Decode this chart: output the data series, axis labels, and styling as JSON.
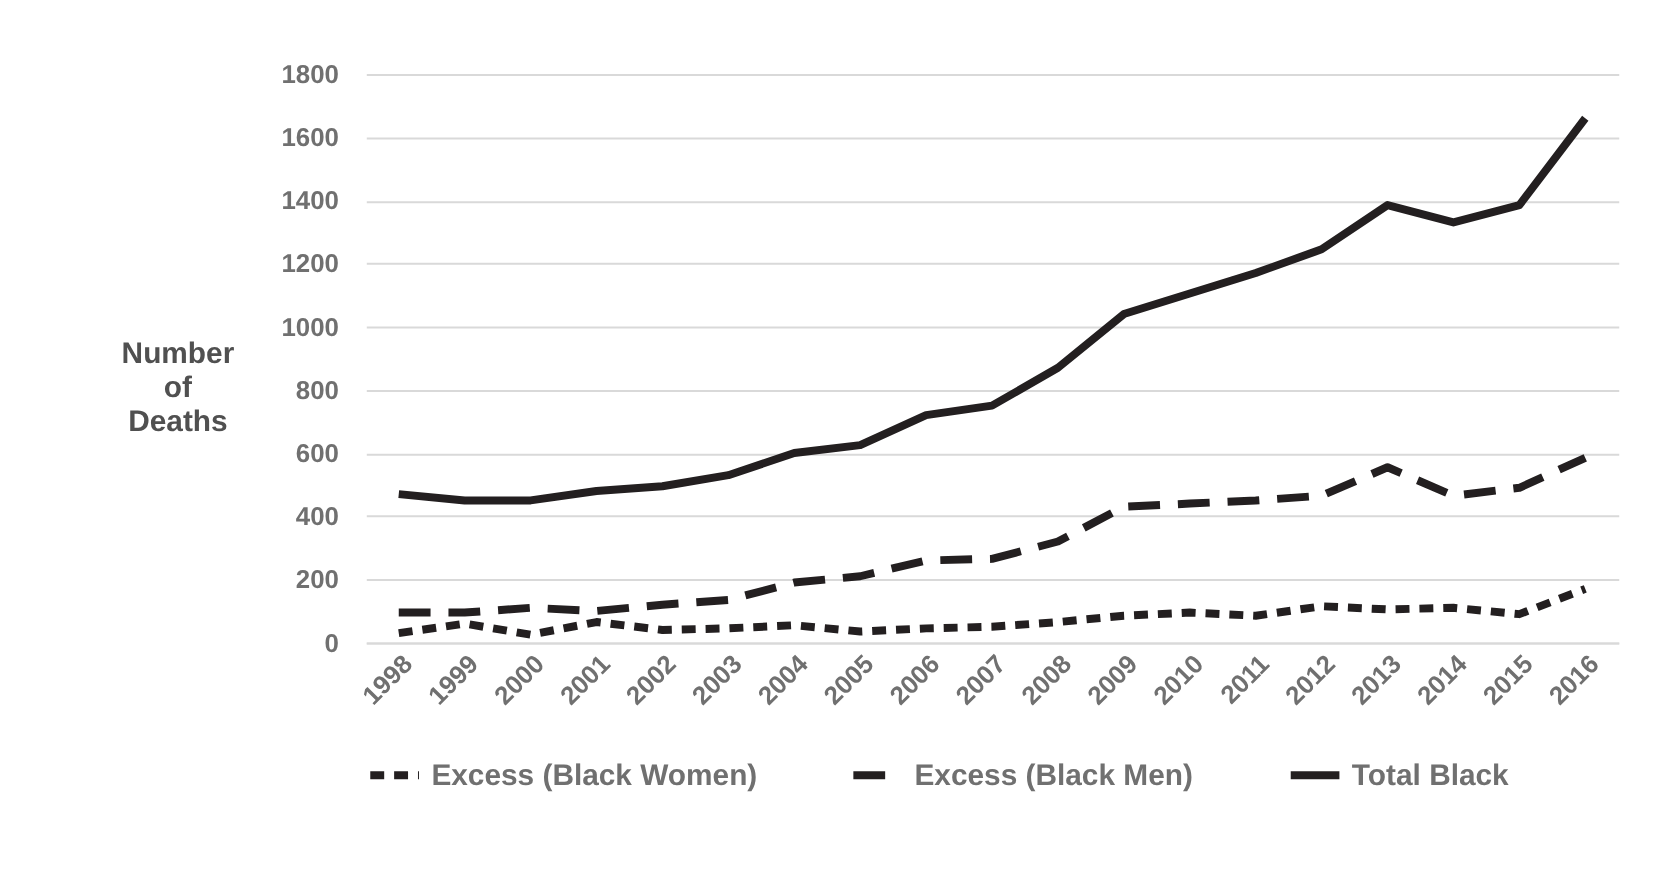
{
  "chart_data": {
    "type": "line",
    "ylabel": "Number of Deaths",
    "categories": [
      "1998",
      "1999",
      "2000",
      "2001",
      "2002",
      "2003",
      "2004",
      "2005",
      "2006",
      "2007",
      "2008",
      "2009",
      "2010",
      "2011",
      "2012",
      "2013",
      "2014",
      "2015",
      "2016"
    ],
    "series": [
      {
        "name": "Excess (Black Women)",
        "color": "#231f20",
        "line_style": "dashed",
        "values": [
          30,
          60,
          25,
          65,
          40,
          45,
          55,
          35,
          45,
          50,
          65,
          85,
          95,
          85,
          115,
          105,
          110,
          90,
          170
        ]
      },
      {
        "name": "Excess (Black Men)",
        "color": "#231f20",
        "line_style": "longdash",
        "values": [
          95,
          95,
          110,
          100,
          120,
          135,
          190,
          210,
          260,
          265,
          320,
          430,
          440,
          450,
          465,
          555,
          465,
          490,
          585
        ]
      },
      {
        "name": "Total Black",
        "color": "#231f20",
        "line_style": "solid",
        "values": [
          470,
          450,
          450,
          480,
          495,
          530,
          600,
          625,
          720,
          750,
          870,
          1040,
          1105,
          1170,
          1245,
          1385,
          1330,
          1385,
          1660
        ]
      }
    ],
    "ylim": [
      0,
      1800
    ],
    "yticks": [
      0,
      200,
      400,
      600,
      800,
      1000,
      1200,
      1400,
      1600,
      1800
    ],
    "grid": "y",
    "legend": "bottom"
  }
}
